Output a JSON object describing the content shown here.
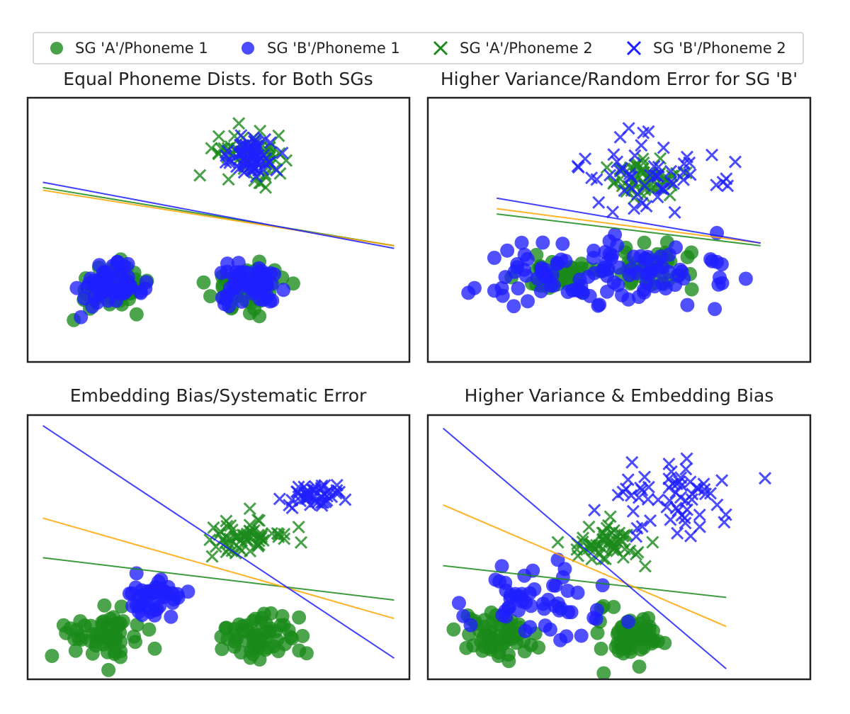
{
  "legend": {
    "items": [
      {
        "label": "SG 'A'/Phoneme 1",
        "marker": "circle",
        "color": "#1a8a1a"
      },
      {
        "label": "SG 'B'/Phoneme 1",
        "marker": "circle",
        "color": "#1f1fff"
      },
      {
        "label": "SG 'A'/Phoneme 2",
        "marker": "x",
        "color": "#1a8a1a"
      },
      {
        "label": "SG 'B'/Phoneme 2",
        "marker": "x",
        "color": "#1f1fff"
      }
    ]
  },
  "colors": {
    "group_a": "#1a8a1a",
    "group_b": "#1f1fff",
    "decision_line_all": "#ffa500"
  },
  "chart_data": [
    {
      "type": "scatter",
      "title": "Equal Phoneme Dists. for Both SGs",
      "xlim": [
        0,
        10
      ],
      "ylim": [
        0,
        10
      ],
      "axes_ticks": false,
      "grid": false,
      "clusters": [
        {
          "group": "A",
          "marker": "circle",
          "center": [
            2.2,
            2.8
          ],
          "spread": [
            0.9,
            0.8
          ],
          "n": 55
        },
        {
          "group": "A",
          "marker": "circle",
          "center": [
            5.8,
            2.9
          ],
          "spread": [
            0.9,
            0.8
          ],
          "n": 55
        },
        {
          "group": "A",
          "marker": "x",
          "center": [
            5.8,
            7.9
          ],
          "spread": [
            0.9,
            0.75
          ],
          "n": 60
        },
        {
          "group": "B",
          "marker": "circle",
          "center": [
            2.2,
            2.8
          ],
          "spread": [
            0.75,
            0.7
          ],
          "n": 55
        },
        {
          "group": "B",
          "marker": "circle",
          "center": [
            5.8,
            2.9
          ],
          "spread": [
            0.75,
            0.7
          ],
          "n": 55
        },
        {
          "group": "B",
          "marker": "x",
          "center": [
            5.9,
            7.8
          ],
          "spread": [
            0.75,
            0.7
          ],
          "n": 60
        }
      ],
      "lines": [
        {
          "color": "#1a8a1a",
          "x": [
            0.4,
            9.6
          ],
          "y": [
            6.6,
            4.4
          ]
        },
        {
          "color": "#ffa500",
          "x": [
            0.4,
            9.6
          ],
          "y": [
            6.5,
            4.4
          ]
        },
        {
          "color": "#1f1fff",
          "x": [
            0.4,
            9.6
          ],
          "y": [
            6.8,
            4.3
          ]
        }
      ]
    },
    {
      "type": "scatter",
      "title": "Higher Variance/Random Error for SG 'B'",
      "xlim": [
        0,
        10
      ],
      "ylim": [
        0,
        10
      ],
      "axes_ticks": false,
      "grid": false,
      "clusters": [
        {
          "group": "A",
          "marker": "circle",
          "center": [
            3.5,
            3.3
          ],
          "spread": [
            1.0,
            0.7
          ],
          "n": 45
        },
        {
          "group": "A",
          "marker": "circle",
          "center": [
            5.9,
            3.5
          ],
          "spread": [
            1.0,
            0.7
          ],
          "n": 45
        },
        {
          "group": "A",
          "marker": "x",
          "center": [
            5.7,
            6.9
          ],
          "spread": [
            0.8,
            0.7
          ],
          "n": 50
        },
        {
          "group": "B",
          "marker": "circle",
          "center": [
            3.5,
            3.3
          ],
          "spread": [
            1.8,
            1.3
          ],
          "n": 55
        },
        {
          "group": "B",
          "marker": "circle",
          "center": [
            5.9,
            3.5
          ],
          "spread": [
            1.8,
            1.3
          ],
          "n": 55
        },
        {
          "group": "B",
          "marker": "x",
          "center": [
            5.9,
            7.1
          ],
          "spread": [
            1.6,
            1.4
          ],
          "n": 55
        }
      ],
      "lines": [
        {
          "color": "#1a8a1a",
          "x": [
            1.8,
            8.7
          ],
          "y": [
            5.6,
            4.4
          ]
        },
        {
          "color": "#ffa500",
          "x": [
            1.8,
            8.7
          ],
          "y": [
            5.8,
            4.5
          ]
        },
        {
          "color": "#1f1fff",
          "x": [
            1.8,
            8.7
          ],
          "y": [
            6.2,
            4.5
          ]
        }
      ]
    },
    {
      "type": "scatter",
      "title": "Embedding Bias/Systematic Error",
      "xlim": [
        0,
        10
      ],
      "ylim": [
        0,
        10
      ],
      "axes_ticks": false,
      "grid": false,
      "clusters": [
        {
          "group": "A",
          "marker": "circle",
          "center": [
            1.9,
            1.6
          ],
          "spread": [
            0.9,
            0.8
          ],
          "n": 60
        },
        {
          "group": "A",
          "marker": "circle",
          "center": [
            6.0,
            1.6
          ],
          "spread": [
            0.9,
            0.8
          ],
          "n": 60
        },
        {
          "group": "A",
          "marker": "x",
          "center": [
            5.7,
            5.3
          ],
          "spread": [
            0.9,
            0.7
          ],
          "n": 60
        },
        {
          "group": "B",
          "marker": "circle",
          "center": [
            3.3,
            3.2
          ],
          "spread": [
            0.8,
            0.7
          ],
          "n": 45
        },
        {
          "group": "B",
          "marker": "x",
          "center": [
            7.5,
            6.9
          ],
          "spread": [
            0.7,
            0.6
          ],
          "n": 45
        }
      ],
      "lines": [
        {
          "color": "#1a8a1a",
          "x": [
            0.4,
            9.6
          ],
          "y": [
            4.6,
            3.0
          ]
        },
        {
          "color": "#ffa500",
          "x": [
            0.4,
            9.6
          ],
          "y": [
            6.1,
            2.3
          ]
        },
        {
          "color": "#1f1fff",
          "x": [
            0.4,
            9.6
          ],
          "y": [
            9.6,
            0.8
          ]
        }
      ]
    },
    {
      "type": "scatter",
      "title": "Higher Variance & Embedding Bias",
      "xlim": [
        0,
        10
      ],
      "ylim": [
        0,
        10
      ],
      "axes_ticks": false,
      "grid": false,
      "clusters": [
        {
          "group": "A",
          "marker": "circle",
          "center": [
            1.8,
            1.6
          ],
          "spread": [
            0.9,
            0.8
          ],
          "n": 60
        },
        {
          "group": "A",
          "marker": "circle",
          "center": [
            5.4,
            1.6
          ],
          "spread": [
            0.8,
            0.8
          ],
          "n": 60
        },
        {
          "group": "A",
          "marker": "x",
          "center": [
            4.6,
            5.2
          ],
          "spread": [
            0.8,
            0.7
          ],
          "n": 55
        },
        {
          "group": "B",
          "marker": "circle",
          "center": [
            3.1,
            3.0
          ],
          "spread": [
            1.6,
            1.4
          ],
          "n": 55
        },
        {
          "group": "B",
          "marker": "x",
          "center": [
            6.4,
            7.0
          ],
          "spread": [
            1.5,
            1.3
          ],
          "n": 60
        }
      ],
      "lines": [
        {
          "color": "#1a8a1a",
          "x": [
            0.4,
            7.8
          ],
          "y": [
            4.3,
            3.1
          ]
        },
        {
          "color": "#ffa500",
          "x": [
            0.4,
            7.8
          ],
          "y": [
            6.6,
            2.0
          ]
        },
        {
          "color": "#1f1fff",
          "x": [
            0.4,
            7.8
          ],
          "y": [
            9.5,
            0.4
          ]
        }
      ]
    }
  ]
}
